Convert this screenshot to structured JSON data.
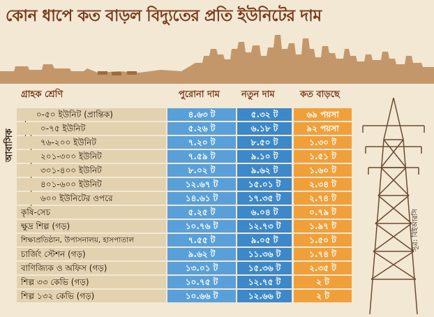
{
  "title": "কোন ধাপে কত বাড়ল বিদ্যুতের প্রতি ইউনিটের দাম",
  "headers": {
    "category": "গ্রাহক শ্রেণি",
    "old": "পুরোনা দাম",
    "new": "নতুন দাম",
    "increase": "কত বাড়ছে"
  },
  "residential_label": "আবাসিক",
  "source": "সূত্র: বিইআরসি",
  "rows": [
    {
      "label": "০-৫০ ইউনিট (প্রান্তিক)",
      "old": "৪.৬৩ ট",
      "new": "৫.৩২ ট",
      "inc": "৬৯ পয়সা"
    },
    {
      "label": "০-৭৫ ইউনিট",
      "old": "৫.২৬ ট",
      "new": "৬.১৮ ট",
      "inc": "৯২ পয়সা"
    },
    {
      "label": "৭৬-২০০ ইউনিট",
      "old": "৭.২০ ট",
      "new": "৮.৫০ ট",
      "inc": "১.৩০ ট"
    },
    {
      "label": "২০১-৩০০ ইউনিট",
      "old": "৭.৫৯ ট",
      "new": "৯.১০ ট",
      "inc": "১.৫১ ট"
    },
    {
      "label": "৩০১-৪০০ ইউনিট",
      "old": "৮.০২ ট",
      "new": "৯.৬২ ট",
      "inc": "১.৬০ ট"
    },
    {
      "label": "৪০১-৬০০ ইউনিট",
      "old": "১২.৬৭ ট",
      "new": "১৫.০১ ট",
      "inc": "২.৩৪ ট"
    },
    {
      "label": "৬০০ ইউনিটের ওপরে",
      "old": "১৪.৬১ ট",
      "new": "১৭.৩৫ ট",
      "inc": "২.৭৪ ট"
    },
    {
      "label": "কৃষি-সেচ",
      "old": "৫.২৫ ট",
      "new": "৬.০৪ ট",
      "inc": "০.৭৯ ট"
    },
    {
      "label": "ক্ষুদ্র শিল্প (গড়)",
      "old": "১০.৭৬ ট",
      "new": "১২.৭৩ ট",
      "inc": "১.৯৭ ট"
    },
    {
      "label": "শিক্ষাপ্রতিষ্ঠান, উপাসনালয়, হাসপাতাল",
      "old": "৭.৫৫ ট",
      "new": "৯.০৫ ট",
      "inc": "১.৫০ ট"
    },
    {
      "label": "চার্জিং স্টেশন (গড়)",
      "old": "৯.৬২ ট",
      "new": "১১.৩৬ ট",
      "inc": "১.৭৪ ট"
    },
    {
      "label": "বাণিজ্যিক ও অফিস (গড়)",
      "old": "১৩.০১ ট",
      "new": "১৫.৩৬ ট",
      "inc": "২.৩৫ ট"
    },
    {
      "label": "শিল্প ৩৩ কেভি (গড়)",
      "old": "১০.৭৫ ট",
      "new": "১২.৭৫ ট",
      "inc": "২ ট"
    },
    {
      "label": "শিল্প ১৩২ কেভি (গড়)",
      "old": "১০.৬৬ ট",
      "new": "১২.৬৬ ট",
      "inc": "২ ট"
    }
  ],
  "colors": {
    "title": "#7a3a1c",
    "old_col": "#5aa0d8",
    "new_col": "#3d88c8",
    "inc_col": "#f0a03a",
    "skyline": "#b98a5e"
  }
}
